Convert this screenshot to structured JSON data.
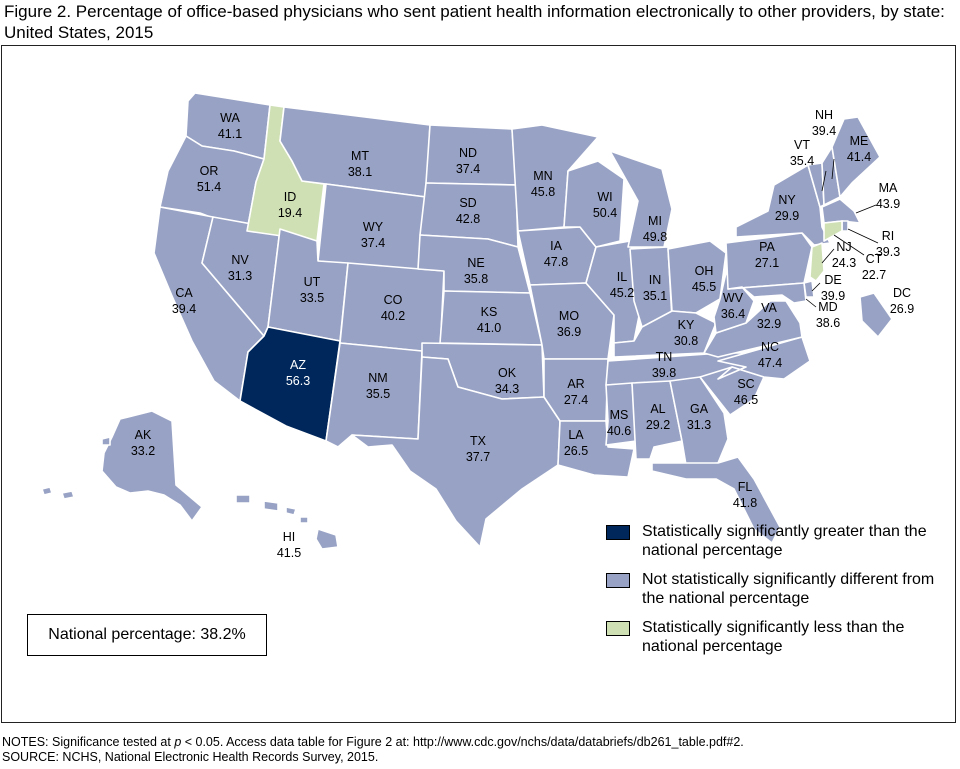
{
  "title": "Figure 2. Percentage of office-based physicians who sent patient health information electronically to other providers, by state: United States, 2015",
  "colors": {
    "greater": "#00275b",
    "not_different": "#98a2c4",
    "less": "#cfe0b5"
  },
  "states": {
    "WA": {
      "abbr": "WA",
      "value": "41.1",
      "category": "not_different"
    },
    "OR": {
      "abbr": "OR",
      "value": "51.4",
      "category": "not_different"
    },
    "CA": {
      "abbr": "CA",
      "value": "39.4",
      "category": "not_different"
    },
    "NV": {
      "abbr": "NV",
      "value": "31.3",
      "category": "not_different"
    },
    "ID": {
      "abbr": "ID",
      "value": "19.4",
      "category": "less"
    },
    "MT": {
      "abbr": "MT",
      "value": "38.1",
      "category": "not_different"
    },
    "WY": {
      "abbr": "WY",
      "value": "37.4",
      "category": "not_different"
    },
    "UT": {
      "abbr": "UT",
      "value": "33.5",
      "category": "not_different"
    },
    "AZ": {
      "abbr": "AZ",
      "value": "56.3",
      "category": "greater"
    },
    "CO": {
      "abbr": "CO",
      "value": "40.2",
      "category": "not_different"
    },
    "NM": {
      "abbr": "NM",
      "value": "35.5",
      "category": "not_different"
    },
    "ND": {
      "abbr": "ND",
      "value": "37.4",
      "category": "not_different"
    },
    "SD": {
      "abbr": "SD",
      "value": "42.8",
      "category": "not_different"
    },
    "NE": {
      "abbr": "NE",
      "value": "35.8",
      "category": "not_different"
    },
    "KS": {
      "abbr": "KS",
      "value": "41.0",
      "category": "not_different"
    },
    "OK": {
      "abbr": "OK",
      "value": "34.3",
      "category": "not_different"
    },
    "TX": {
      "abbr": "TX",
      "value": "37.7",
      "category": "not_different"
    },
    "MN": {
      "abbr": "MN",
      "value": "45.8",
      "category": "not_different"
    },
    "IA": {
      "abbr": "IA",
      "value": "47.8",
      "category": "not_different"
    },
    "MO": {
      "abbr": "MO",
      "value": "36.9",
      "category": "not_different"
    },
    "AR": {
      "abbr": "AR",
      "value": "27.4",
      "category": "not_different"
    },
    "LA": {
      "abbr": "LA",
      "value": "26.5",
      "category": "not_different"
    },
    "WI": {
      "abbr": "WI",
      "value": "50.4",
      "category": "not_different"
    },
    "IL": {
      "abbr": "IL",
      "value": "45.2",
      "category": "not_different"
    },
    "MI": {
      "abbr": "MI",
      "value": "49.8",
      "category": "not_different"
    },
    "IN": {
      "abbr": "IN",
      "value": "35.1",
      "category": "not_different"
    },
    "OH": {
      "abbr": "OH",
      "value": "45.5",
      "category": "not_different"
    },
    "KY": {
      "abbr": "KY",
      "value": "30.8",
      "category": "not_different"
    },
    "TN": {
      "abbr": "TN",
      "value": "39.8",
      "category": "not_different"
    },
    "MS": {
      "abbr": "MS",
      "value": "40.6",
      "category": "not_different"
    },
    "AL": {
      "abbr": "AL",
      "value": "29.2",
      "category": "not_different"
    },
    "GA": {
      "abbr": "GA",
      "value": "31.3",
      "category": "not_different"
    },
    "FL": {
      "abbr": "FL",
      "value": "41.8",
      "category": "not_different"
    },
    "SC": {
      "abbr": "SC",
      "value": "46.5",
      "category": "not_different"
    },
    "NC": {
      "abbr": "NC",
      "value": "47.4",
      "category": "not_different"
    },
    "VA": {
      "abbr": "VA",
      "value": "32.9",
      "category": "not_different"
    },
    "WV": {
      "abbr": "WV",
      "value": "36.4",
      "category": "not_different"
    },
    "PA": {
      "abbr": "PA",
      "value": "27.1",
      "category": "not_different"
    },
    "NY": {
      "abbr": "NY",
      "value": "29.9",
      "category": "not_different"
    },
    "VT": {
      "abbr": "VT",
      "value": "35.4",
      "category": "not_different"
    },
    "NH": {
      "abbr": "NH",
      "value": "39.4",
      "category": "not_different"
    },
    "ME": {
      "abbr": "ME",
      "value": "41.4",
      "category": "not_different"
    },
    "MA": {
      "abbr": "MA",
      "value": "43.9",
      "category": "not_different"
    },
    "RI": {
      "abbr": "RI",
      "value": "39.3",
      "category": "not_different"
    },
    "CT": {
      "abbr": "CT",
      "value": "22.7",
      "category": "less"
    },
    "NJ": {
      "abbr": "NJ",
      "value": "24.3",
      "category": "less"
    },
    "DE": {
      "abbr": "DE",
      "value": "39.9",
      "category": "not_different"
    },
    "MD": {
      "abbr": "MD",
      "value": "38.6",
      "category": "not_different"
    },
    "DC": {
      "abbr": "DC",
      "value": "26.9",
      "category": "not_different"
    },
    "AK": {
      "abbr": "AK",
      "value": "33.2",
      "category": "not_different"
    },
    "HI": {
      "abbr": "HI",
      "value": "41.5",
      "category": "not_different"
    }
  },
  "legend": {
    "greater": "Statistically significantly greater than the national percentage",
    "not_different": "Not statistically significantly different from the national percentage",
    "less": "Statistically significantly less than the national percentage"
  },
  "national": "National percentage: 38.2%",
  "notes": {
    "prefix": "NOTES: Significance tested at ",
    "p": "p",
    "suffix": " < 0.05. Access data table for Figure 2 at: http://www.cdc.gov/nchs/data/databriefs/db261_table.pdf#2.",
    "source": "SOURCE: NCHS, National Electronic Health Records Survey, 2015."
  }
}
